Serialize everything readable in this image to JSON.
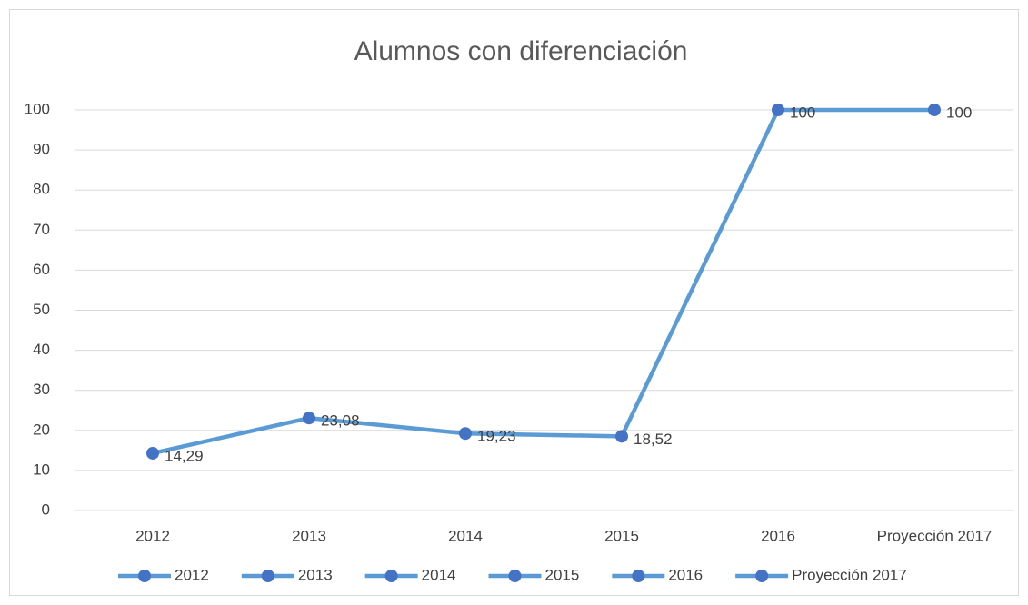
{
  "chart_data": {
    "type": "line",
    "title": "Alumnos con diferenciación",
    "categories": [
      "2012",
      "2013",
      "2014",
      "2015",
      "2016",
      "Proyección 2017"
    ],
    "values": [
      14.29,
      23.08,
      19.23,
      18.52,
      100,
      100
    ],
    "value_labels": [
      "14,29",
      "23,08",
      "19,23",
      "18,52",
      "100",
      "100"
    ],
    "color": "#5b9bd5",
    "marker_color": "#4472c4",
    "ylim": [
      0,
      100
    ],
    "yticks": [
      0,
      10,
      20,
      30,
      40,
      50,
      60,
      70,
      80,
      90,
      100
    ],
    "grid": true,
    "legend": "bottom"
  }
}
